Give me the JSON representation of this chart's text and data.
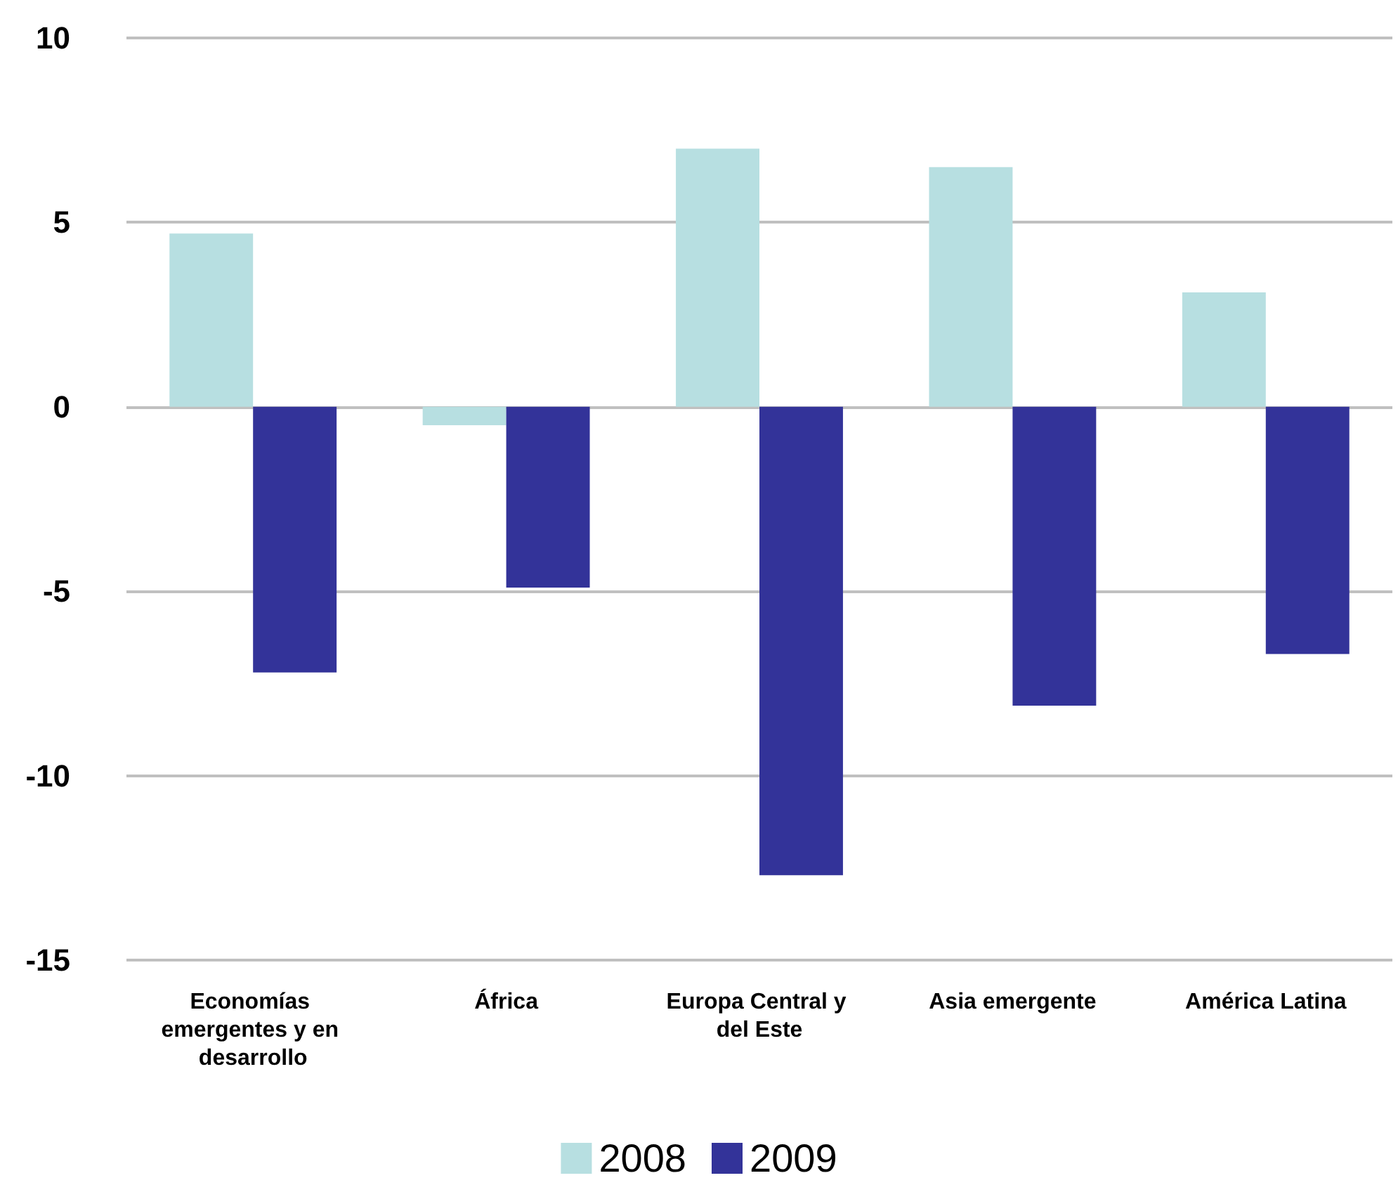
{
  "chart_data": {
    "type": "bar",
    "categories": [
      "Economías emergentes y en desarrollo",
      "África",
      "Europa Central y del Este",
      "Asia emergente",
      "América Latina"
    ],
    "series": [
      {
        "name": "2008",
        "color": "#b7dfe1",
        "values": [
          4.7,
          -0.5,
          7.0,
          6.5,
          3.1
        ]
      },
      {
        "name": "2009",
        "color": "#333399",
        "values": [
          -7.2,
          -4.9,
          -12.7,
          -8.1,
          -6.7
        ]
      }
    ],
    "ylim": [
      -15,
      10
    ],
    "yticks": [
      -15,
      -10,
      -5,
      0,
      5,
      10
    ],
    "grid": "y",
    "legend": "bottom"
  }
}
